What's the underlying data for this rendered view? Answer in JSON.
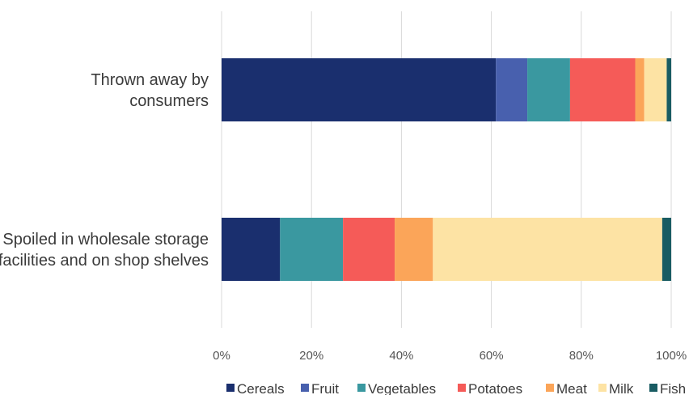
{
  "chart_data": {
    "type": "bar",
    "orientation": "horizontal",
    "stacked": "percent",
    "title": "",
    "xlabel": "",
    "ylabel": "",
    "xlim": [
      0,
      100
    ],
    "x_ticks": [
      "0%",
      "20%",
      "40%",
      "60%",
      "80%",
      "100%"
    ],
    "grid": "vertical",
    "legend": "bottom",
    "categories": [
      [
        "Thrown away by",
        "consumers"
      ],
      [
        "Spoiled in wholesale storage",
        "facilities and on shop shelves"
      ]
    ],
    "series": [
      {
        "name": "Cereals",
        "color": "#1a2f6e",
        "values": [
          61,
          13
        ]
      },
      {
        "name": "Fruit",
        "color": "#4860ae",
        "values": [
          7,
          0
        ]
      },
      {
        "name": "Vegetables",
        "color": "#3a98a0",
        "values": [
          9.5,
          14
        ]
      },
      {
        "name": "Potatoes",
        "color": "#f55b58",
        "values": [
          14.5,
          11.5
        ]
      },
      {
        "name": "Meat",
        "color": "#fba559",
        "values": [
          2,
          8.5
        ]
      },
      {
        "name": "Milk",
        "color": "#fde3a4",
        "values": [
          5,
          51
        ]
      },
      {
        "name": "Fish",
        "color": "#195c63",
        "values": [
          1,
          2
        ]
      }
    ]
  }
}
